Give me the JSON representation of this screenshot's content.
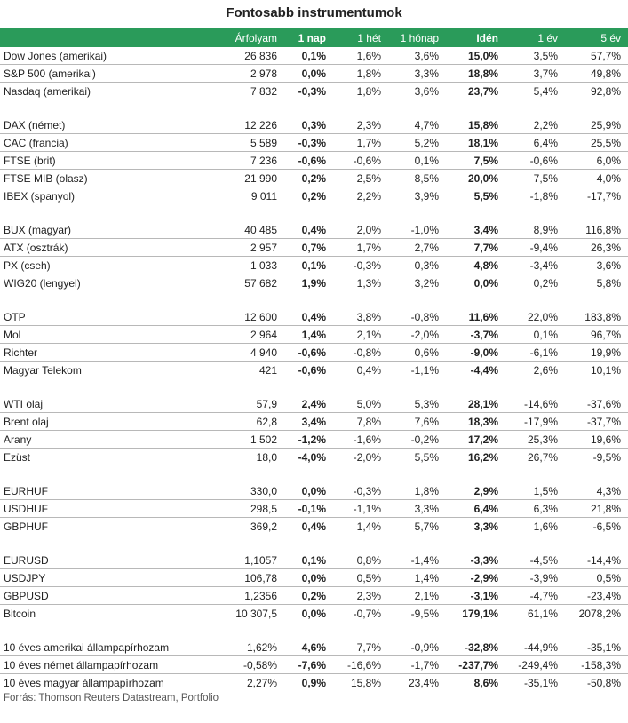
{
  "title": "Fontosabb instrumentumok",
  "header": [
    "",
    "Árfolyam",
    "1 nap",
    "1 hét",
    "1 hónap",
    "Idén",
    "1 év",
    "5 év"
  ],
  "bold_columns": [
    2,
    5
  ],
  "groups": [
    [
      [
        "Dow Jones (amerikai)",
        "26 836",
        "0,1%",
        "1,6%",
        "3,6%",
        "15,0%",
        "3,5%",
        "57,7%"
      ],
      [
        "S&P 500 (amerikai)",
        "2 978",
        "0,0%",
        "1,8%",
        "3,3%",
        "18,8%",
        "3,7%",
        "49,8%"
      ],
      [
        "Nasdaq (amerikai)",
        "7 832",
        "-0,3%",
        "1,8%",
        "3,6%",
        "23,7%",
        "5,4%",
        "92,8%"
      ]
    ],
    [
      [
        "DAX (német)",
        "12 226",
        "0,3%",
        "2,3%",
        "4,7%",
        "15,8%",
        "2,2%",
        "25,9%"
      ],
      [
        "CAC (francia)",
        "5 589",
        "-0,3%",
        "1,7%",
        "5,2%",
        "18,1%",
        "6,4%",
        "25,5%"
      ],
      [
        "FTSE (brit)",
        "7 236",
        "-0,6%",
        "-0,6%",
        "0,1%",
        "7,5%",
        "-0,6%",
        "6,0%"
      ],
      [
        "FTSE MIB (olasz)",
        "21 990",
        "0,2%",
        "2,5%",
        "8,5%",
        "20,0%",
        "7,5%",
        "4,0%"
      ],
      [
        "IBEX (spanyol)",
        "9 011",
        "0,2%",
        "2,2%",
        "3,9%",
        "5,5%",
        "-1,8%",
        "-17,7%"
      ]
    ],
    [
      [
        "BUX (magyar)",
        "40 485",
        "0,4%",
        "2,0%",
        "-1,0%",
        "3,4%",
        "8,9%",
        "116,8%"
      ],
      [
        "ATX (osztrák)",
        "2 957",
        "0,7%",
        "1,7%",
        "2,7%",
        "7,7%",
        "-9,4%",
        "26,3%"
      ],
      [
        "PX (cseh)",
        "1 033",
        "0,1%",
        "-0,3%",
        "0,3%",
        "4,8%",
        "-3,4%",
        "3,6%"
      ],
      [
        "WIG20 (lengyel)",
        "57 682",
        "1,9%",
        "1,3%",
        "3,2%",
        "0,0%",
        "0,2%",
        "5,8%"
      ]
    ],
    [
      [
        "OTP",
        "12 600",
        "0,4%",
        "3,8%",
        "-0,8%",
        "11,6%",
        "22,0%",
        "183,8%"
      ],
      [
        "Mol",
        "2 964",
        "1,4%",
        "2,1%",
        "-2,0%",
        "-3,7%",
        "0,1%",
        "96,7%"
      ],
      [
        "Richter",
        "4 940",
        "-0,6%",
        "-0,8%",
        "0,6%",
        "-9,0%",
        "-6,1%",
        "19,9%"
      ],
      [
        "Magyar Telekom",
        "421",
        "-0,6%",
        "0,4%",
        "-1,1%",
        "-4,4%",
        "2,6%",
        "10,1%"
      ]
    ],
    [
      [
        "WTI olaj",
        "57,9",
        "2,4%",
        "5,0%",
        "5,3%",
        "28,1%",
        "-14,6%",
        "-37,6%"
      ],
      [
        "Brent olaj",
        "62,8",
        "3,4%",
        "7,8%",
        "7,6%",
        "18,3%",
        "-17,9%",
        "-37,7%"
      ],
      [
        "Arany",
        "1 502",
        "-1,2%",
        "-1,6%",
        "-0,2%",
        "17,2%",
        "25,3%",
        "19,6%"
      ],
      [
        "Ezüst",
        "18,0",
        "-4,0%",
        "-2,0%",
        "5,5%",
        "16,2%",
        "26,7%",
        "-9,5%"
      ]
    ],
    [
      [
        "EURHUF",
        "330,0",
        "0,0%",
        "-0,3%",
        "1,8%",
        "2,9%",
        "1,5%",
        "4,3%"
      ],
      [
        "USDHUF",
        "298,5",
        "-0,1%",
        "-1,1%",
        "3,3%",
        "6,4%",
        "6,3%",
        "21,8%"
      ],
      [
        "GBPHUF",
        "369,2",
        "0,4%",
        "1,4%",
        "5,7%",
        "3,3%",
        "1,6%",
        "-6,5%"
      ]
    ],
    [
      [
        "EURUSD",
        "1,1057",
        "0,1%",
        "0,8%",
        "-1,4%",
        "-3,3%",
        "-4,5%",
        "-14,4%"
      ],
      [
        "USDJPY",
        "106,78",
        "0,0%",
        "0,5%",
        "1,4%",
        "-2,9%",
        "-3,9%",
        "0,5%"
      ],
      [
        "GBPUSD",
        "1,2356",
        "0,2%",
        "2,3%",
        "2,1%",
        "-3,1%",
        "-4,7%",
        "-23,4%"
      ],
      [
        "Bitcoin",
        "10 307,5",
        "0,0%",
        "-0,7%",
        "-9,5%",
        "179,1%",
        "61,1%",
        "2078,2%"
      ]
    ],
    [
      [
        "10 éves amerikai állampapírhozam",
        "1,62%",
        "4,6%",
        "7,7%",
        "-0,9%",
        "-32,8%",
        "-44,9%",
        "-35,1%"
      ],
      [
        "10 éves német állampapírhozam",
        "-0,58%",
        "-7,6%",
        "-16,6%",
        "-1,7%",
        "-237,7%",
        "-249,4%",
        "-158,3%"
      ],
      [
        "10 éves magyar állampapírhozam",
        "2,27%",
        "0,9%",
        "15,8%",
        "23,4%",
        "8,6%",
        "-35,1%",
        "-50,8%"
      ]
    ]
  ],
  "source": "Forrás: Thomson Reuters Datastream, Portfolio"
}
